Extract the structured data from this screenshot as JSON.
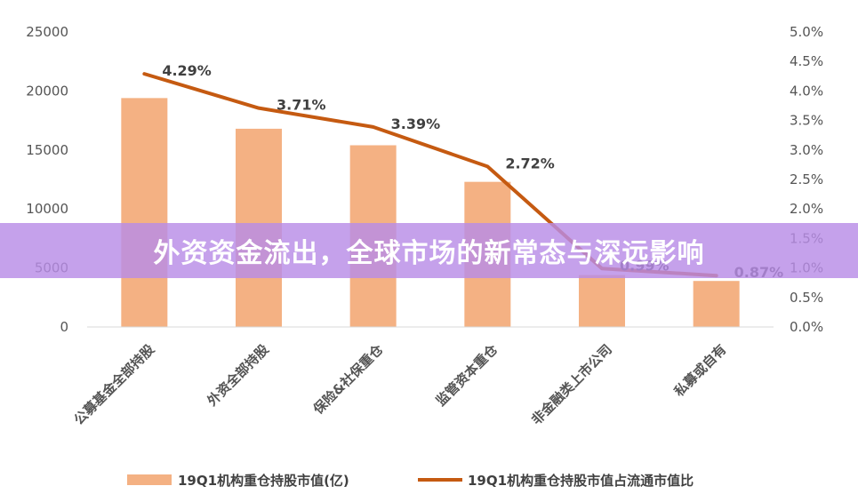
{
  "banner": {
    "text": "外资资金流出，全球市场的新常态与深远影响"
  },
  "colors": {
    "bar": "#F4B183",
    "line": "#C55A11",
    "banner": "#B88CE6",
    "axis": "#D9D9D9"
  },
  "chart_data": {
    "type": "bar",
    "categories": [
      "公募基金全部持股",
      "外资全部持股",
      "保险&社保重仓",
      "监管资本重仓",
      "非金融类上市公司",
      "私募或自有"
    ],
    "series": [
      {
        "name": "19Q1机构重仓持股市值(亿)",
        "type": "bar",
        "axis": "left",
        "values": [
          19400,
          16800,
          15400,
          12300,
          4400,
          3900
        ]
      },
      {
        "name": "19Q1机构重仓持股市值占流通市值比",
        "type": "line",
        "axis": "right",
        "values": [
          4.29,
          3.71,
          3.39,
          2.72,
          0.99,
          0.87
        ],
        "labels": [
          "4.29%",
          "3.71%",
          "3.39%",
          "2.72%",
          "0.99%",
          "0.87%"
        ]
      }
    ],
    "ylim": [
      0,
      25000
    ],
    "yticks": [
      "0",
      "5000",
      "10000",
      "15000",
      "20000",
      "25000"
    ],
    "y2lim": [
      0,
      5
    ],
    "y2ticks": [
      "0.0%",
      "0.5%",
      "1.0%",
      "1.5%",
      "2.0%",
      "2.5%",
      "3.0%",
      "3.5%",
      "4.0%",
      "4.5%",
      "5.0%"
    ],
    "grid": false,
    "legend_position": "bottom"
  }
}
